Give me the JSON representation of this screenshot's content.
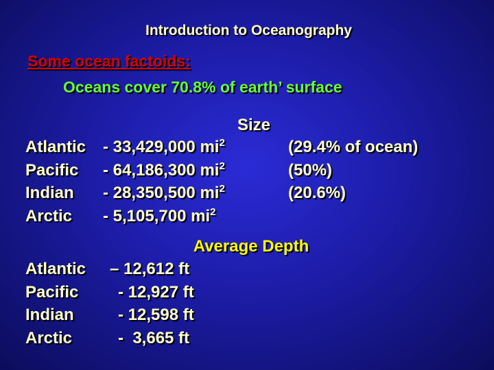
{
  "title": "Introduction to Oceanography",
  "heading": "Some ocean factoids:",
  "subheading": "Oceans cover 70.8% of earth’ surface",
  "size": {
    "header": "Size",
    "rows": [
      {
        "name": "Atlantic",
        "value": "- 33,429,000 mi",
        "sup": "2",
        "note": "(29.4% of ocean)"
      },
      {
        "name": "Pacific",
        "value": "- 64,186,300 mi",
        "sup": "2",
        "note": "(50%)"
      },
      {
        "name": "Indian",
        "value": "- 28,350,500 mi",
        "sup": "2",
        "note": "(20.6%)"
      },
      {
        "name": "Arctic",
        "value": "- 5,105,700 mi",
        "sup": "2"
      }
    ]
  },
  "depth": {
    "header": "Average Depth",
    "rows": [
      {
        "name": "Atlantic",
        "value": "– 12,612 ft"
      },
      {
        "name": "Pacific",
        "value": "- 12,927 ft"
      },
      {
        "name": "Indian",
        "value": "- 12,598 ft"
      },
      {
        "name": "Arctic",
        "value": "-  3,665 ft"
      }
    ]
  }
}
